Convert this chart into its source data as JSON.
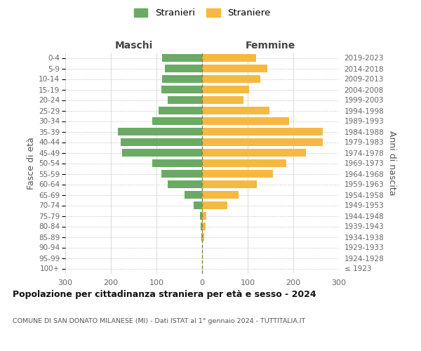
{
  "age_groups": [
    "100+",
    "95-99",
    "90-94",
    "85-89",
    "80-84",
    "75-79",
    "70-74",
    "65-69",
    "60-64",
    "55-59",
    "50-54",
    "45-49",
    "40-44",
    "35-39",
    "30-34",
    "25-29",
    "20-24",
    "15-19",
    "10-14",
    "5-9",
    "0-4"
  ],
  "birth_years": [
    "≤ 1923",
    "1924-1928",
    "1929-1933",
    "1934-1938",
    "1939-1943",
    "1944-1948",
    "1949-1953",
    "1954-1958",
    "1959-1963",
    "1964-1968",
    "1969-1973",
    "1974-1978",
    "1979-1983",
    "1984-1988",
    "1989-1993",
    "1994-1998",
    "1999-2003",
    "2004-2008",
    "2009-2013",
    "2014-2018",
    "2019-2023"
  ],
  "maschi": [
    0,
    0,
    0,
    2,
    3,
    4,
    18,
    38,
    75,
    90,
    110,
    175,
    178,
    185,
    110,
    95,
    75,
    90,
    88,
    82,
    88
  ],
  "femmine": [
    0,
    0,
    0,
    5,
    7,
    9,
    55,
    80,
    120,
    155,
    185,
    228,
    265,
    265,
    190,
    148,
    90,
    103,
    128,
    143,
    118
  ],
  "maschi_color": "#6aaa64",
  "femmine_color": "#f5b942",
  "background_color": "#ffffff",
  "grid_color": "#cccccc",
  "title": "Popolazione per cittadinanza straniera per età e sesso - 2024",
  "subtitle": "COMUNE DI SAN DONATO MILANESE (MI) - Dati ISTAT al 1° gennaio 2024 - TUTTITALIA.IT",
  "ylabel_left": "Fasce di età",
  "ylabel_right": "Anni di nascita",
  "header_maschi": "Maschi",
  "header_femmine": "Femmine",
  "legend_stranieri": "Stranieri",
  "legend_straniere": "Straniere",
  "xlim": 300,
  "bar_height": 0.75
}
